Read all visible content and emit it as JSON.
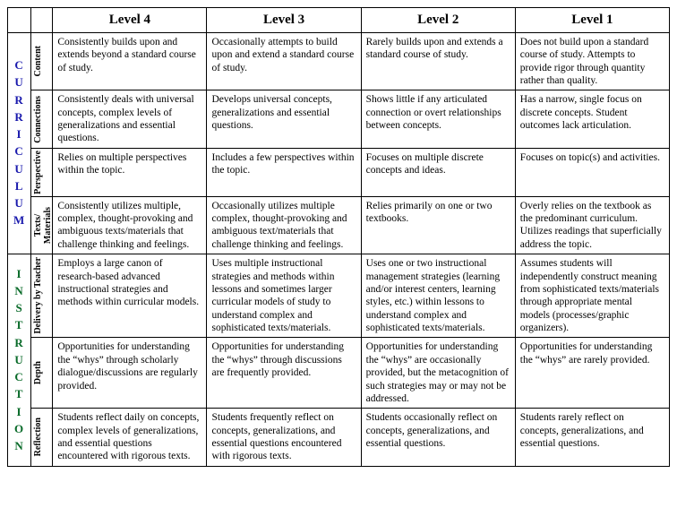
{
  "headers": {
    "l4": "Level 4",
    "l3": "Level 3",
    "l2": "Level 2",
    "l1": "Level 1"
  },
  "sections": [
    {
      "title": "CURRICULUM",
      "color": "#1a1aad",
      "rows": [
        {
          "label": "Content",
          "l4": "Consistently builds upon and extends beyond a standard course of study.",
          "l3": "Occasionally attempts to build upon and extend a standard course of study.",
          "l2": "Rarely builds upon and extends a standard course of study.",
          "l1": "Does not build upon a standard course of study.  Attempts to provide rigor through quantity rather than quality."
        },
        {
          "label": "Connections",
          "l4": "Consistently deals with universal concepts, complex levels of generalizations and essential questions.",
          "l3": "Develops universal concepts, generalizations and essential questions.",
          "l2": "Shows little if any articulated connection or overt relationships between concepts.",
          "l1": "Has a narrow, single focus on discrete concepts.  Student outcomes lack articulation."
        },
        {
          "label": "Perspective",
          "l4": "Relies on multiple perspectives within the topic.",
          "l3": "Includes a few perspectives within the topic.",
          "l2": "Focuses on multiple discrete concepts and ideas.",
          "l1": "Focuses on topic(s) and activities."
        },
        {
          "label": "Texts/\nMaterials",
          "l4": "Consistently utilizes multiple, complex, thought-provoking and ambiguous texts/materials that challenge thinking and feelings.",
          "l3": "Occasionally utilizes multiple complex, thought-provoking and ambiguous text/materials that challenge thinking and feelings.",
          "l2": "Relies primarily on one or two textbooks.",
          "l1": "Overly relies on the textbook as the predominant curriculum.  Utilizes readings that superficially address the topic."
        }
      ]
    },
    {
      "title": "INSTRUCTION",
      "color": "#0a6b2a",
      "rows": [
        {
          "label": "Delivery by Teacher",
          "l4": "Employs a large canon of research-based advanced instructional strategies and methods within curricular models.",
          "l3": "Uses multiple instructional strategies and methods within lessons and sometimes larger curricular models of study to understand complex and sophisticated texts/materials.",
          "l2": "Uses one or two instructional management strategies (learning and/or interest centers, learning styles, etc.) within lessons to understand complex and sophisticated texts/materials.",
          "l1": "Assumes students will independently construct meaning from sophisticated texts/materials  through appropriate mental models (processes/graphic organizers)."
        },
        {
          "label": "Depth",
          "l4": "Opportunities for understanding the “whys” through scholarly dialogue/discussions are regularly provided.",
          "l3": "Opportunities for understanding the “whys” through discussions are frequently provided.",
          "l2": "Opportunities for understanding the “whys” are occasionally provided, but the metacognition of such strategies may or may not be addressed.",
          "l1": "Opportunities for understanding the “whys” are rarely provided."
        },
        {
          "label": "Reflection",
          "l4": "Students reflect daily on concepts, complex levels of generalizations, and essential questions encountered with rigorous texts.",
          "l3": "Students frequently reflect on concepts, generalizations, and essential questions encountered with rigorous texts.",
          "l2": "Students occasionally reflect on concepts, generalizations, and essential questions.",
          "l1": "Students rarely reflect on concepts, generalizations, and essential questions."
        }
      ]
    }
  ]
}
